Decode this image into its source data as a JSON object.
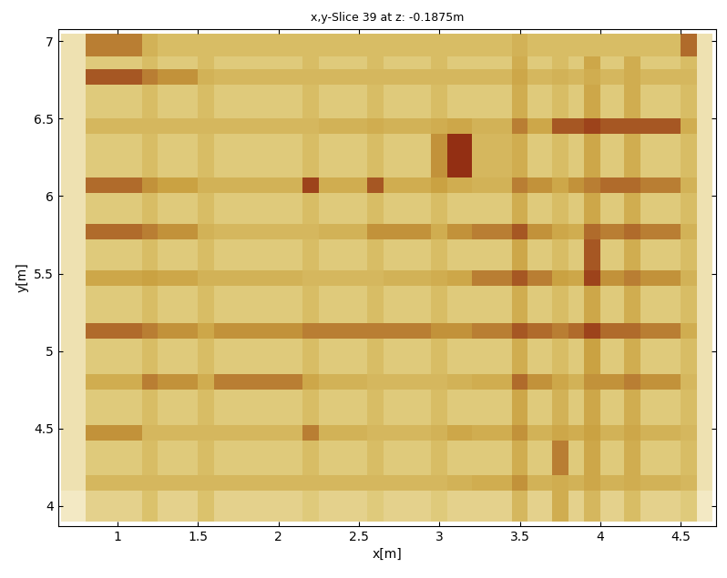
{
  "chart_data": {
    "type": "heatmap",
    "title": "x,y-Slice 39 at z: -0.1875m",
    "x_label": "x[m]",
    "y_label": "y[m]",
    "xlim": [
      0.63,
      4.72
    ],
    "ylim": [
      3.87,
      7.08
    ],
    "xticks": [
      1,
      1.5,
      2,
      2.5,
      3,
      3.5,
      4,
      4.5
    ],
    "yticks": [
      4,
      4.5,
      5,
      5.5,
      6,
      6.5,
      7
    ],
    "colors": [
      "#fdf8e8",
      "#dcc46e",
      "#c9a040",
      "#8a1c0c"
    ],
    "clim": [
      0,
      100
    ],
    "x_edges": [
      0.65,
      0.8,
      1.15,
      1.25,
      1.5,
      1.6,
      2.15,
      2.25,
      2.55,
      2.65,
      2.95,
      3.05,
      3.2,
      3.45,
      3.55,
      3.7,
      3.8,
      3.9,
      4.0,
      4.15,
      4.25,
      4.5,
      4.6,
      4.7
    ],
    "y_edges": [
      3.9,
      4.1,
      4.2,
      4.42,
      4.52,
      4.75,
      4.85,
      5.08,
      5.18,
      5.42,
      5.52,
      5.72,
      5.82,
      6.02,
      6.12,
      6.4,
      6.5,
      6.72,
      6.82,
      6.9,
      7.05
    ],
    "cells": [
      [
        10,
        25,
        35,
        25,
        35,
        25,
        30,
        25,
        30,
        25,
        30,
        25,
        25,
        45,
        25,
        55,
        25,
        45,
        25,
        40,
        25,
        30,
        10
      ],
      [
        15,
        45,
        45,
        45,
        45,
        45,
        45,
        45,
        45,
        45,
        45,
        50,
        55,
        70,
        50,
        55,
        50,
        60,
        50,
        55,
        50,
        45,
        15
      ],
      [
        15,
        30,
        40,
        30,
        40,
        30,
        40,
        30,
        40,
        30,
        40,
        30,
        30,
        55,
        30,
        75,
        30,
        60,
        30,
        55,
        30,
        40,
        15
      ],
      [
        15,
        70,
        45,
        45,
        45,
        45,
        75,
        50,
        45,
        45,
        50,
        60,
        55,
        70,
        50,
        60,
        55,
        65,
        50,
        60,
        50,
        45,
        15
      ],
      [
        15,
        30,
        40,
        30,
        40,
        30,
        40,
        30,
        40,
        30,
        40,
        30,
        30,
        60,
        30,
        50,
        30,
        60,
        30,
        55,
        30,
        40,
        15
      ],
      [
        15,
        55,
        75,
        70,
        55,
        75,
        60,
        50,
        45,
        45,
        45,
        50,
        55,
        80,
        70,
        60,
        50,
        70,
        70,
        75,
        70,
        45,
        15
      ],
      [
        15,
        30,
        40,
        30,
        40,
        30,
        40,
        30,
        40,
        30,
        40,
        30,
        30,
        55,
        30,
        40,
        30,
        65,
        30,
        55,
        30,
        40,
        15
      ],
      [
        15,
        80,
        75,
        70,
        60,
        70,
        75,
        75,
        75,
        75,
        70,
        70,
        75,
        85,
        80,
        75,
        80,
        90,
        80,
        80,
        75,
        55,
        15
      ],
      [
        15,
        30,
        40,
        30,
        40,
        30,
        40,
        30,
        40,
        30,
        40,
        30,
        30,
        55,
        30,
        40,
        30,
        60,
        30,
        55,
        30,
        40,
        15
      ],
      [
        15,
        60,
        65,
        60,
        50,
        50,
        45,
        45,
        45,
        50,
        55,
        60,
        75,
        85,
        75,
        65,
        60,
        90,
        70,
        75,
        70,
        50,
        15
      ],
      [
        15,
        30,
        40,
        30,
        40,
        30,
        40,
        30,
        40,
        30,
        40,
        30,
        30,
        60,
        30,
        40,
        30,
        85,
        30,
        55,
        30,
        40,
        15
      ],
      [
        15,
        80,
        75,
        70,
        50,
        45,
        45,
        50,
        70,
        70,
        55,
        70,
        75,
        85,
        70,
        60,
        55,
        80,
        75,
        80,
        75,
        50,
        15
      ],
      [
        15,
        30,
        40,
        30,
        40,
        30,
        40,
        30,
        40,
        30,
        40,
        30,
        30,
        55,
        30,
        40,
        30,
        60,
        30,
        55,
        30,
        40,
        15
      ],
      [
        15,
        80,
        70,
        65,
        50,
        50,
        90,
        55,
        85,
        55,
        65,
        55,
        50,
        75,
        70,
        60,
        70,
        75,
        80,
        80,
        75,
        50,
        15
      ],
      [
        15,
        30,
        40,
        30,
        40,
        30,
        40,
        30,
        40,
        30,
        70,
        95,
        45,
        55,
        30,
        40,
        30,
        60,
        30,
        55,
        30,
        40,
        15
      ],
      [
        15,
        45,
        45,
        45,
        45,
        45,
        45,
        50,
        55,
        50,
        55,
        60,
        50,
        75,
        60,
        85,
        85,
        90,
        85,
        85,
        85,
        55,
        15
      ],
      [
        15,
        30,
        40,
        30,
        40,
        30,
        40,
        30,
        40,
        30,
        40,
        30,
        30,
        55,
        30,
        40,
        30,
        60,
        30,
        55,
        30,
        40,
        15
      ],
      [
        15,
        85,
        75,
        70,
        50,
        45,
        45,
        45,
        45,
        45,
        45,
        45,
        45,
        60,
        45,
        50,
        45,
        55,
        45,
        55,
        45,
        45,
        15
      ],
      [
        15,
        30,
        40,
        30,
        40,
        30,
        40,
        30,
        40,
        30,
        40,
        30,
        30,
        55,
        30,
        40,
        30,
        60,
        30,
        55,
        30,
        40,
        15
      ],
      [
        15,
        75,
        50,
        40,
        40,
        40,
        40,
        40,
        40,
        40,
        40,
        40,
        40,
        50,
        40,
        40,
        40,
        40,
        40,
        40,
        40,
        80,
        15
      ]
    ]
  }
}
